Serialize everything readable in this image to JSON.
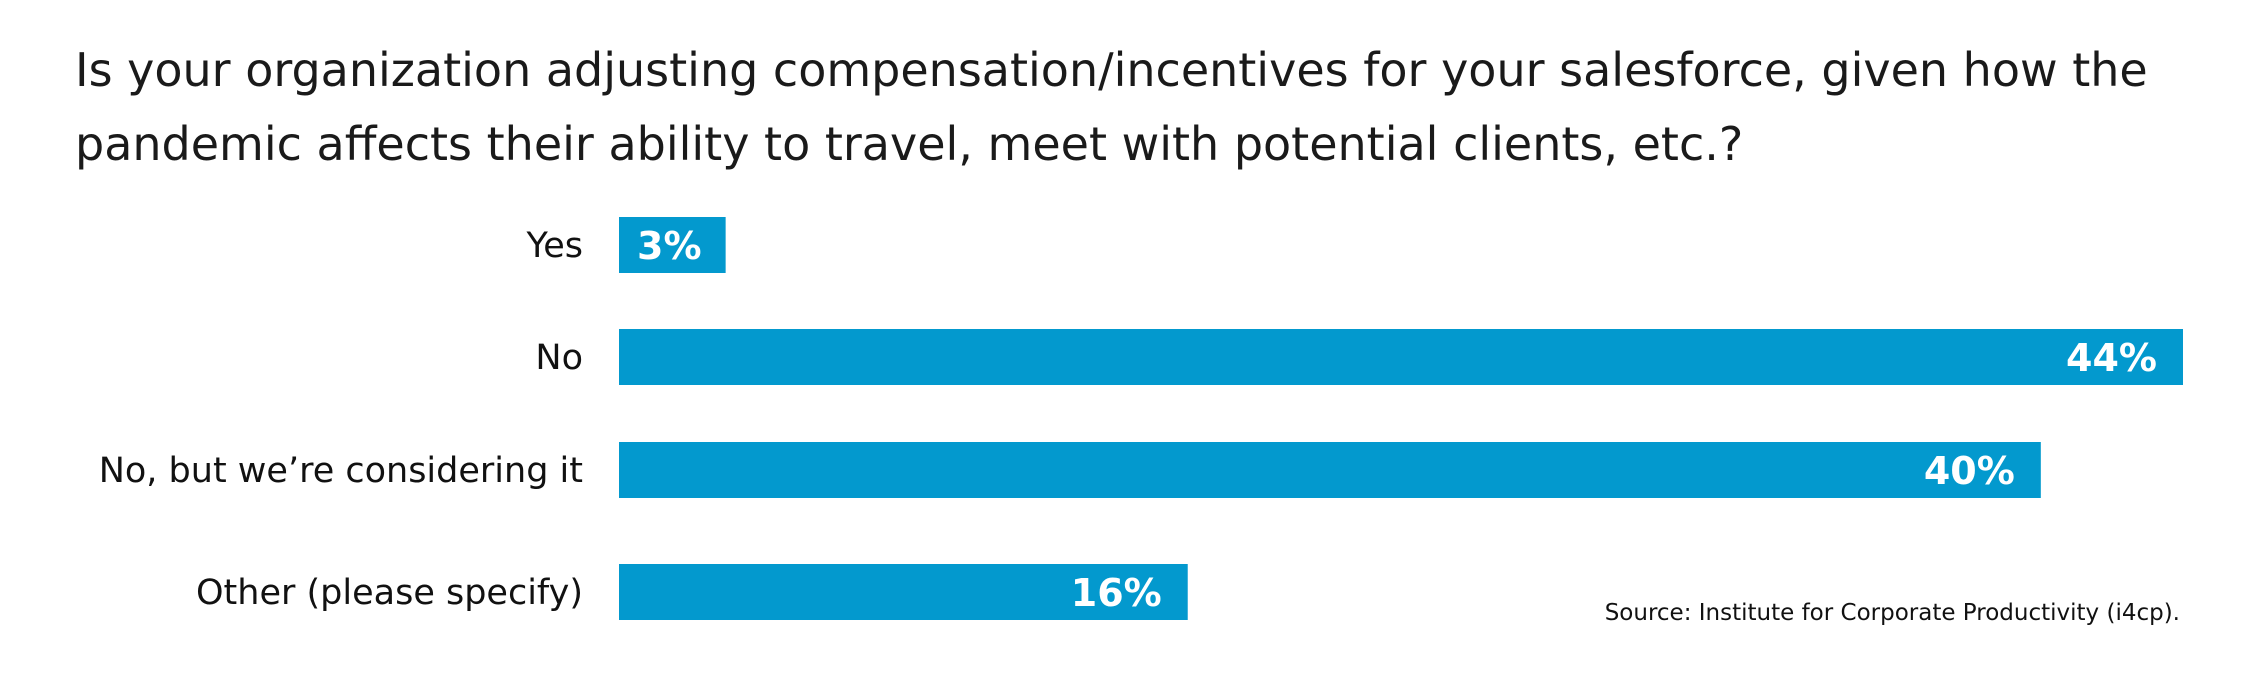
{
  "chart_data": {
    "type": "bar",
    "orientation": "horizontal",
    "title_lines": [
      "Is your organization adjusting compensation/incentives for your salesforce, given how the",
      "pandemic affects their ability to travel, meet with potential clients, etc.?"
    ],
    "categories": [
      "Yes",
      "No",
      "No, but we’re considering it",
      "Other (please specify)"
    ],
    "values": [
      3,
      44,
      40,
      16
    ],
    "value_labels": [
      "3%",
      "44%",
      "40%",
      "16%"
    ],
    "unit": "%",
    "xlim": [
      0,
      44
    ],
    "grid": false,
    "legend": "none",
    "bar_color": "#0399CE",
    "source": "Source: Institute for Corporate Productivity (i4cp)."
  }
}
